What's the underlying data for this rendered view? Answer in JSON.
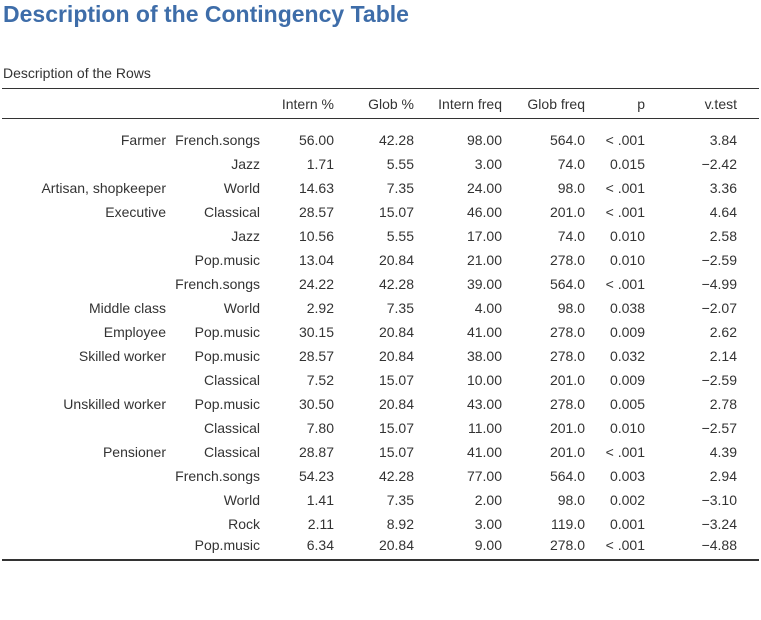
{
  "page": {
    "title": "Description of the Contingency Table",
    "caption": "Description of the Rows"
  },
  "table": {
    "headers": {
      "row": "",
      "column": "",
      "intern_pct": "Intern %",
      "glob_pct": "Glob %",
      "intern_freq": "Intern freq",
      "glob_freq": "Glob freq",
      "p": "p",
      "vtest": "v.test"
    },
    "rows": [
      {
        "row": "Farmer",
        "column": "French.songs",
        "intern_pct": "56.00",
        "glob_pct": "42.28",
        "intern_freq": "98.00",
        "glob_freq": "564.0",
        "p": "< .001",
        "vtest": "3.84"
      },
      {
        "row": "",
        "column": "Jazz",
        "intern_pct": "1.71",
        "glob_pct": "5.55",
        "intern_freq": "3.00",
        "glob_freq": "74.0",
        "p": "0.015",
        "vtest": "−2.42"
      },
      {
        "row": "Artisan, shopkeeper",
        "column": "World",
        "intern_pct": "14.63",
        "glob_pct": "7.35",
        "intern_freq": "24.00",
        "glob_freq": "98.0",
        "p": "< .001",
        "vtest": "3.36"
      },
      {
        "row": "Executive",
        "column": "Classical",
        "intern_pct": "28.57",
        "glob_pct": "15.07",
        "intern_freq": "46.00",
        "glob_freq": "201.0",
        "p": "< .001",
        "vtest": "4.64"
      },
      {
        "row": "",
        "column": "Jazz",
        "intern_pct": "10.56",
        "glob_pct": "5.55",
        "intern_freq": "17.00",
        "glob_freq": "74.0",
        "p": "0.010",
        "vtest": "2.58"
      },
      {
        "row": "",
        "column": "Pop.music",
        "intern_pct": "13.04",
        "glob_pct": "20.84",
        "intern_freq": "21.00",
        "glob_freq": "278.0",
        "p": "0.010",
        "vtest": "−2.59"
      },
      {
        "row": "",
        "column": "French.songs",
        "intern_pct": "24.22",
        "glob_pct": "42.28",
        "intern_freq": "39.00",
        "glob_freq": "564.0",
        "p": "< .001",
        "vtest": "−4.99"
      },
      {
        "row": "Middle class",
        "column": "World",
        "intern_pct": "2.92",
        "glob_pct": "7.35",
        "intern_freq": "4.00",
        "glob_freq": "98.0",
        "p": "0.038",
        "vtest": "−2.07"
      },
      {
        "row": "Employee",
        "column": "Pop.music",
        "intern_pct": "30.15",
        "glob_pct": "20.84",
        "intern_freq": "41.00",
        "glob_freq": "278.0",
        "p": "0.009",
        "vtest": "2.62"
      },
      {
        "row": "Skilled worker",
        "column": "Pop.music",
        "intern_pct": "28.57",
        "glob_pct": "20.84",
        "intern_freq": "38.00",
        "glob_freq": "278.0",
        "p": "0.032",
        "vtest": "2.14"
      },
      {
        "row": "",
        "column": "Classical",
        "intern_pct": "7.52",
        "glob_pct": "15.07",
        "intern_freq": "10.00",
        "glob_freq": "201.0",
        "p": "0.009",
        "vtest": "−2.59"
      },
      {
        "row": "Unskilled worker",
        "column": "Pop.music",
        "intern_pct": "30.50",
        "glob_pct": "20.84",
        "intern_freq": "43.00",
        "glob_freq": "278.0",
        "p": "0.005",
        "vtest": "2.78"
      },
      {
        "row": "",
        "column": "Classical",
        "intern_pct": "7.80",
        "glob_pct": "15.07",
        "intern_freq": "11.00",
        "glob_freq": "201.0",
        "p": "0.010",
        "vtest": "−2.57"
      },
      {
        "row": "Pensioner",
        "column": "Classical",
        "intern_pct": "28.87",
        "glob_pct": "15.07",
        "intern_freq": "41.00",
        "glob_freq": "201.0",
        "p": "< .001",
        "vtest": "4.39"
      },
      {
        "row": "",
        "column": "French.songs",
        "intern_pct": "54.23",
        "glob_pct": "42.28",
        "intern_freq": "77.00",
        "glob_freq": "564.0",
        "p": "0.003",
        "vtest": "2.94"
      },
      {
        "row": "",
        "column": "World",
        "intern_pct": "1.41",
        "glob_pct": "7.35",
        "intern_freq": "2.00",
        "glob_freq": "98.0",
        "p": "0.002",
        "vtest": "−3.10"
      },
      {
        "row": "",
        "column": "Rock",
        "intern_pct": "2.11",
        "glob_pct": "8.92",
        "intern_freq": "3.00",
        "glob_freq": "119.0",
        "p": "0.001",
        "vtest": "−3.24"
      },
      {
        "row": "",
        "column": "Pop.music",
        "intern_pct": "6.34",
        "glob_pct": "20.84",
        "intern_freq": "9.00",
        "glob_freq": "278.0",
        "p": "< .001",
        "vtest": "−4.88"
      }
    ]
  }
}
